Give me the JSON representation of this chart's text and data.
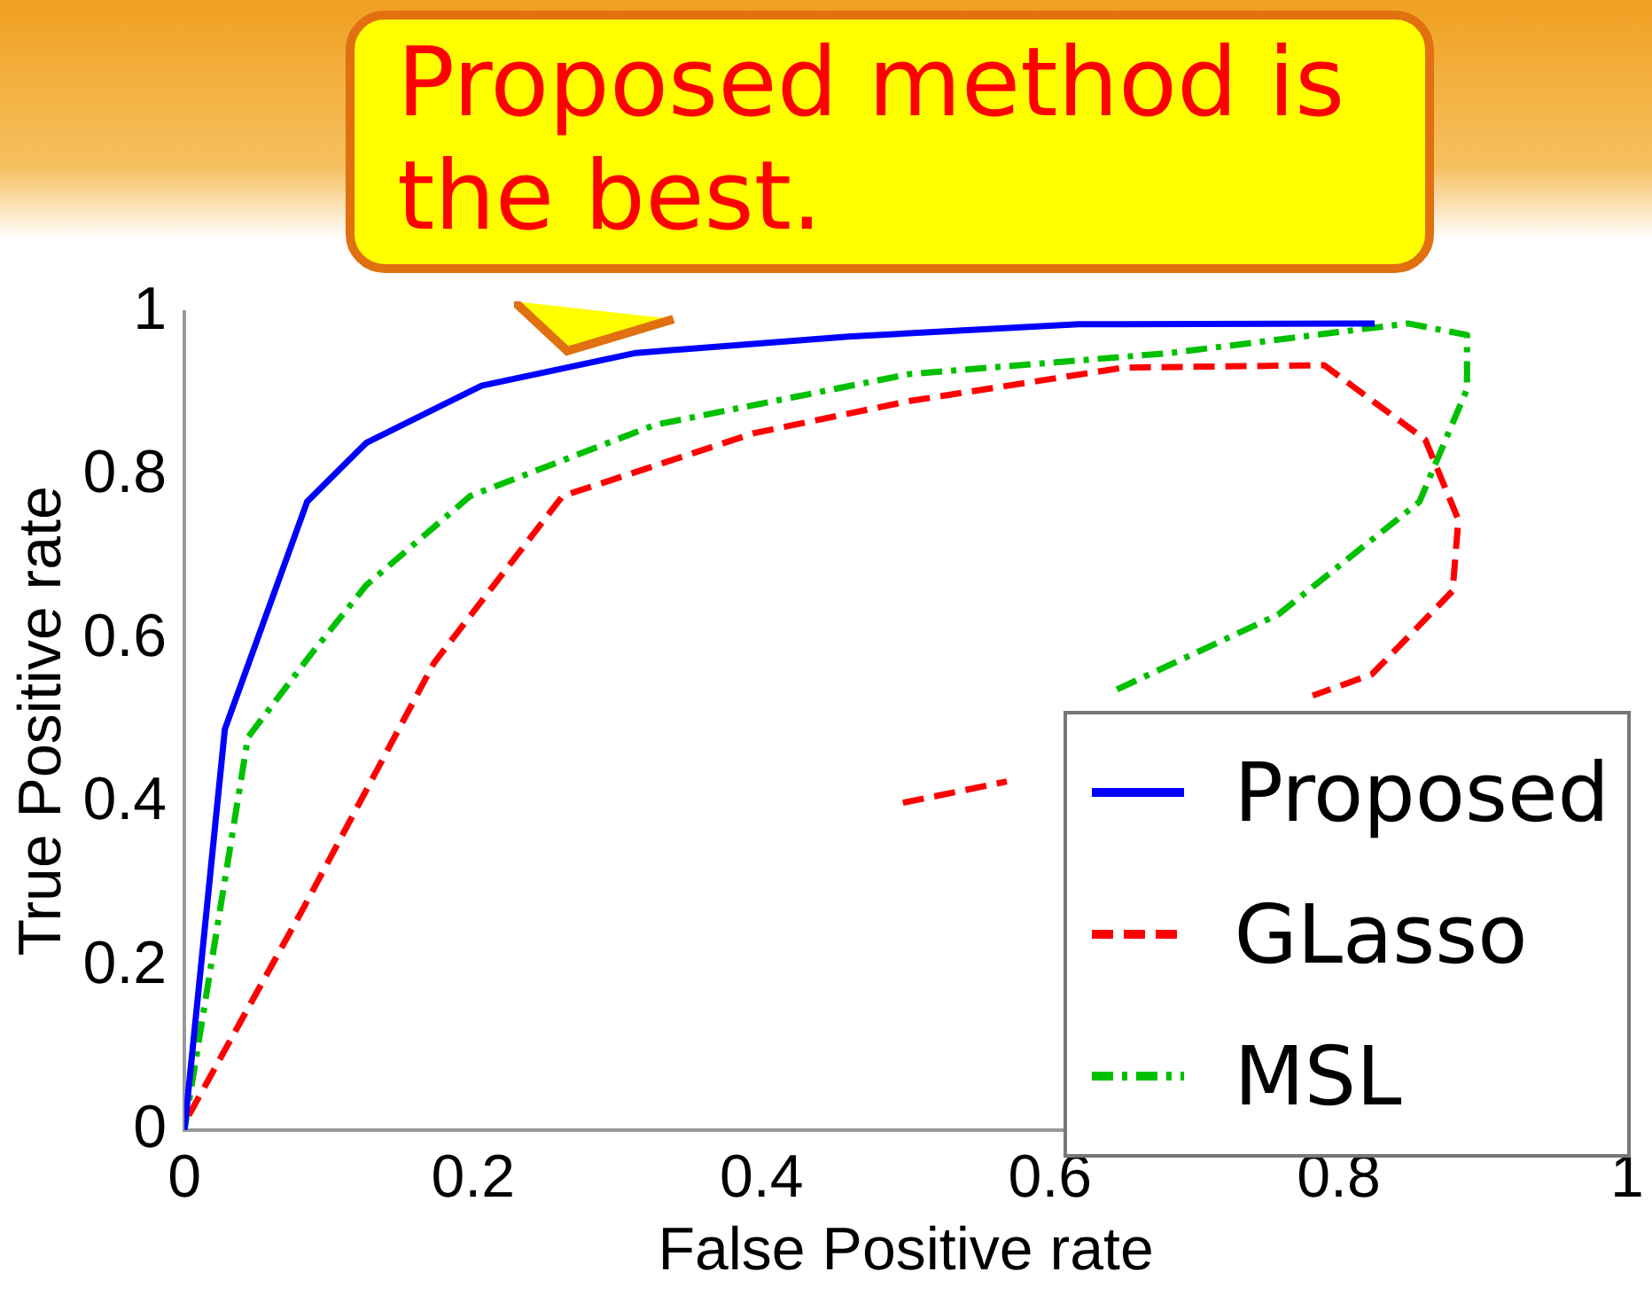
{
  "chart_data": {
    "type": "line",
    "xlabel": "False Positive rate",
    "ylabel": "True Positive rate",
    "xlim": [
      0,
      1
    ],
    "ylim": [
      0,
      1
    ],
    "xticks": [
      0,
      0.2,
      0.4,
      0.6,
      0.8,
      1
    ],
    "yticks": [
      0,
      0.2,
      0.4,
      0.6,
      0.8,
      1
    ],
    "grid": false,
    "legend": "bottom right",
    "marker": "none",
    "annotations": [
      "Proposed method is the best."
    ],
    "series": [
      {
        "name": "Proposed",
        "color": "#0000ff",
        "line_style": "solid",
        "x": [
          0,
          0.028,
          0.085,
          0.126,
          0.206,
          0.313,
          0.46,
          0.62,
          0.825
        ],
        "values": [
          0,
          0.49,
          0.768,
          0.84,
          0.91,
          0.95,
          0.97,
          0.985,
          0.986
        ]
      },
      {
        "name": "GLasso",
        "color": "#ff0000",
        "line_style": "dashed",
        "x": [
          0.003,
          0.083,
          0.173,
          0.262,
          0.395,
          0.502,
          0.651,
          0.79,
          0.86,
          0.883,
          0.879,
          0.823,
          0.782,
          null,
          0.498,
          0.57
        ],
        "values": [
          0.018,
          0.273,
          0.571,
          0.775,
          0.852,
          0.891,
          0.932,
          0.935,
          0.844,
          0.746,
          0.659,
          0.557,
          0.531,
          null,
          0.4,
          0.426
        ]
      },
      {
        "name": "MSL",
        "color": "#00c000",
        "line_style": "dashdot",
        "x": [
          0,
          0.044,
          0.087,
          0.126,
          0.198,
          0.326,
          0.502,
          0.684,
          0.848,
          0.889,
          0.889,
          0.856,
          0.758,
          0.642
        ],
        "values": [
          0,
          0.48,
          0.58,
          0.666,
          0.775,
          0.862,
          0.924,
          0.95,
          0.986,
          0.972,
          0.906,
          0.768,
          0.63,
          0.535
        ]
      }
    ]
  }
}
